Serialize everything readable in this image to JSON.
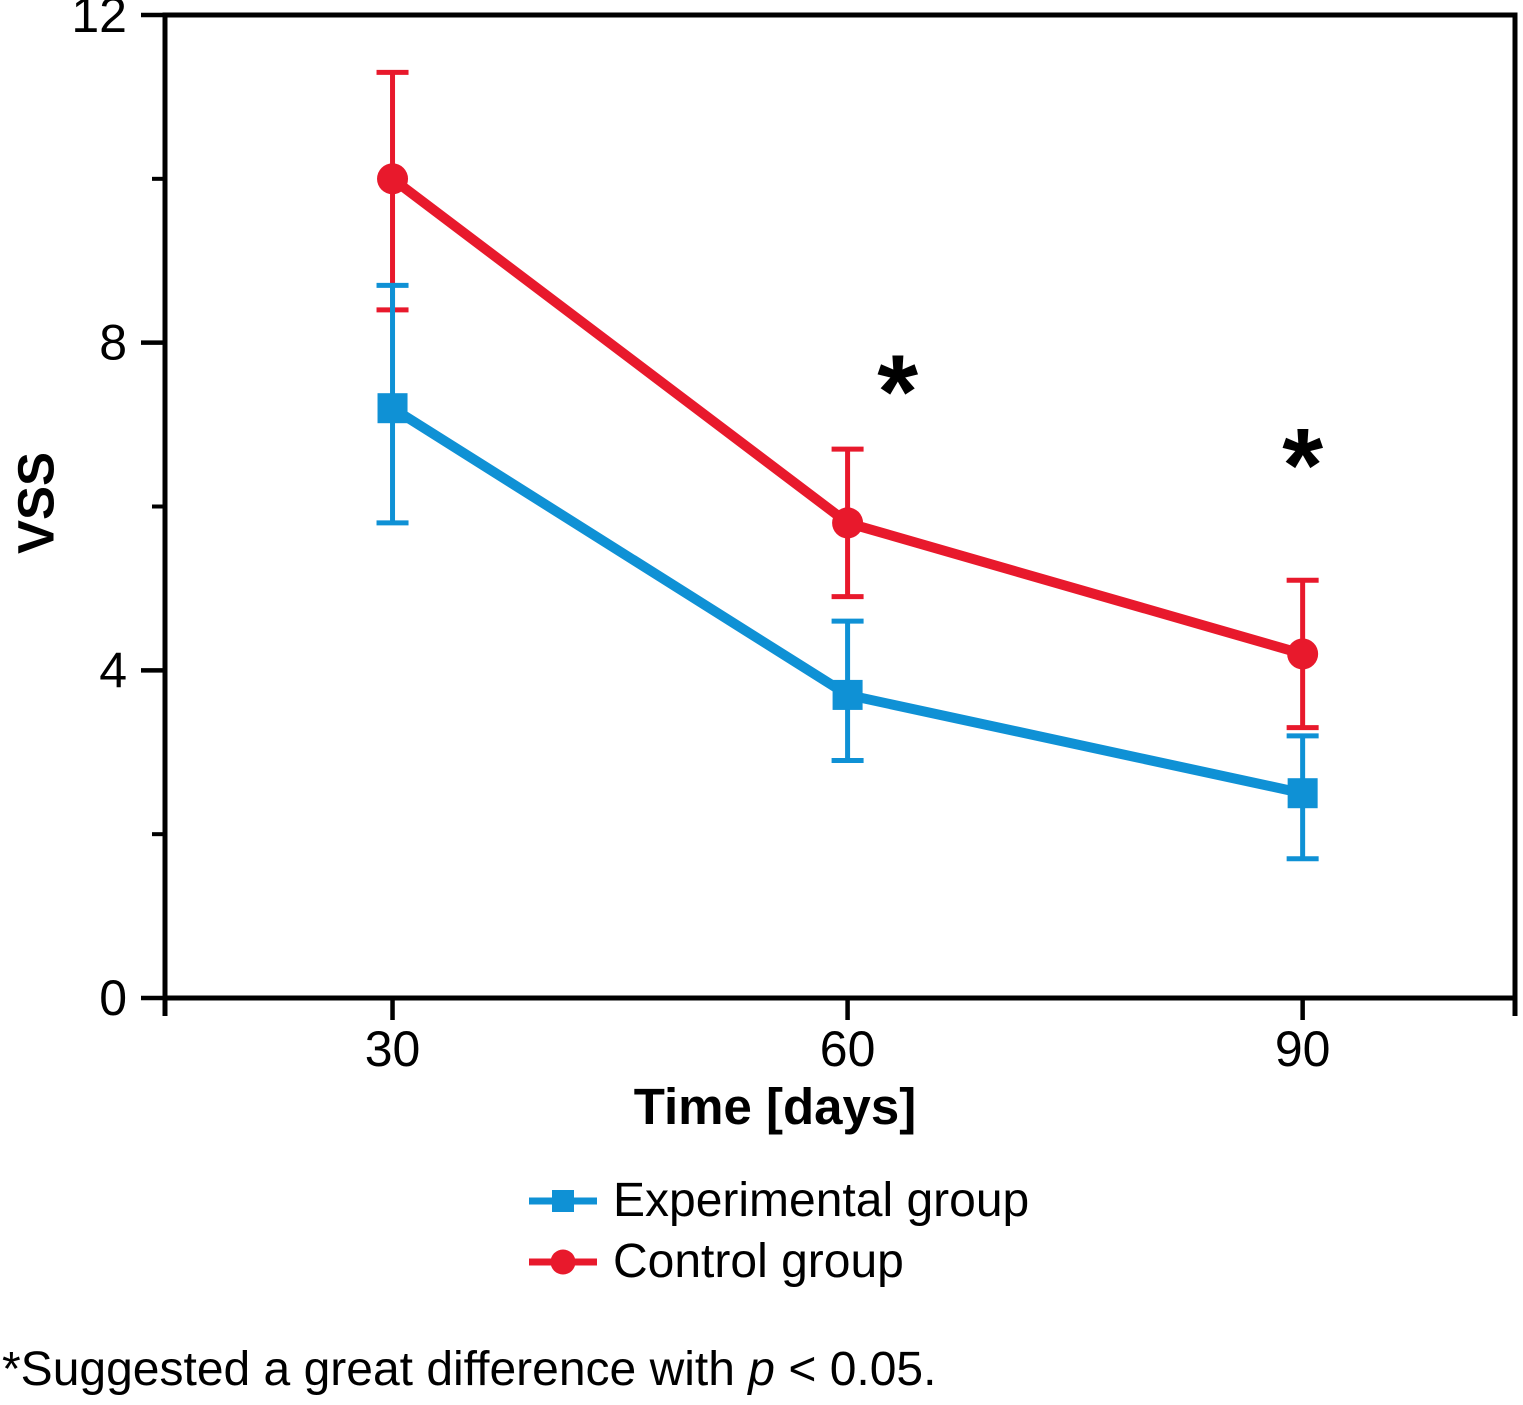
{
  "chart_data": {
    "type": "line",
    "title": "",
    "ylabel": "VSS",
    "xlabel": "Time [days]",
    "x": [
      30,
      60,
      90
    ],
    "xlim": [
      15,
      104
    ],
    "ylim": [
      0,
      12
    ],
    "y_ticks_major": [
      0,
      4,
      8,
      12
    ],
    "y_ticks_minor": [
      2,
      6,
      10
    ],
    "grid": false,
    "legend_position": "bottom-center",
    "series": [
      {
        "name": "Experimental group",
        "color": "#0F91D5",
        "marker": "square",
        "values": [
          7.2,
          3.7,
          2.5
        ],
        "error_upper": [
          8.7,
          4.6,
          3.2
        ],
        "error_lower": [
          5.8,
          2.9,
          1.7
        ]
      },
      {
        "name": "Control group",
        "color": "#E8192C",
        "marker": "circle",
        "values": [
          10.0,
          5.8,
          4.2
        ],
        "error_upper": [
          11.3,
          6.7,
          5.1
        ],
        "error_lower": [
          8.4,
          4.9,
          3.3
        ]
      }
    ],
    "annotations": [
      {
        "text": "*",
        "x": 63.3,
        "y": 7.6
      },
      {
        "text": "*",
        "x": 90.0,
        "y": 6.7
      }
    ]
  },
  "footnote": {
    "prefix": "*Suggested a great difference with ",
    "p": "p",
    "suffix": " < 0.05."
  }
}
